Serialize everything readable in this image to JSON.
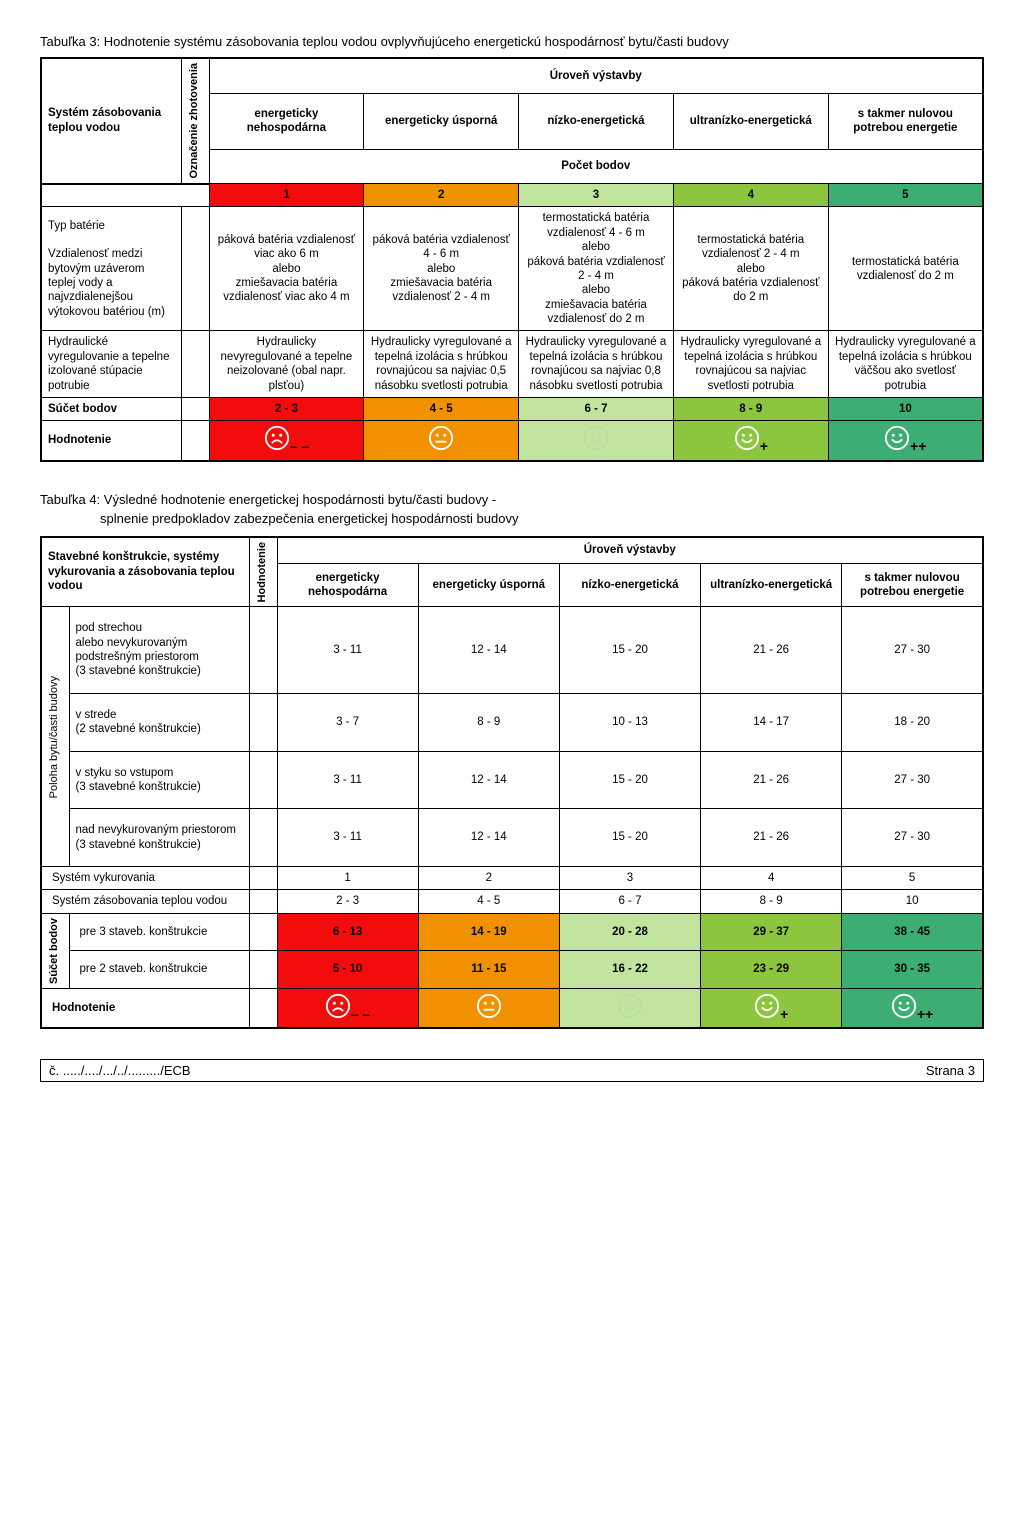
{
  "table3": {
    "caption": "Tabuľka 3: Hodnotenie systému zásobovania teplou vodou ovplyvňujúceho energetickú hospodárnosť bytu/časti budovy",
    "rowhead_main": "Systém zásobovania teplou vodou",
    "rowhead_vert": "Označenie zhotovenia",
    "group_header": "Úroveň výstavby",
    "cols": [
      "energeticky nehospodárna",
      "energeticky úsporná",
      "nízko-energetická",
      "ultranízko-energetická",
      "s takmer nulovou potrebou energetie"
    ],
    "points_label": "Počet bodov",
    "points": [
      "1",
      "2",
      "3",
      "4",
      "5"
    ],
    "point_colors": [
      "#f20c0c",
      "#f29100",
      "#c1e59f",
      "#8cc63f",
      "#3cae74"
    ],
    "r1_label": "Typ batérie\n\nVzdialenosť medzi bytovým uzáverom teplej vody a najvzdialenejšou výtokovou batériou (m)",
    "r1_cells": [
      "páková batéria vzdialenosť viac ako 6 m\nalebo\nzmiešavacia batéria vzdialenosť viac ako 4 m",
      "páková batéria vzdialenosť 4 - 6 m\nalebo\nzmiešavacia batéria vzdialenosť 2 - 4 m",
      "termostatická batéria vzdialenosť 4 - 6 m\nalebo\npáková batéria vzdialenosť 2 - 4 m\nalebo\nzmiešavacia batéria vzdialenosť do 2 m",
      "termostatická batéria vzdialenosť 2 - 4 m\nalebo\npáková batéria vzdialenosť do 2 m",
      "termostatická batéria vzdialenosť do 2 m"
    ],
    "r2_label": "Hydraulické vyregulovanie a tepelne izolované stúpacie potrubie",
    "r2_cells": [
      "Hydraulicky nevyregulované a tepelne neizolované (obal napr. plsťou)",
      "Hydraulicky vyregulované a tepelná izolácia s hrúbkou rovnajúcou sa najviac 0,5 násobku svetlosti potrubia",
      "Hydraulicky vyregulované a tepelná izolácia s hrúbkou rovnajúcou sa najviac 0,8 násobku svetlosti potrubia",
      "Hydraulicky vyregulované a tepelná izolácia s hrúbkou rovnajúcou sa najviac svetlosti potrubia",
      "Hydraulicky vyregulované a tepelná izolácia s hrúbkou väčšou ako svetlosť potrubia"
    ],
    "sum_label": "Súčet bodov",
    "sum_cells": [
      "2 - 3",
      "4 - 5",
      "6 - 7",
      "8 - 9",
      "10"
    ],
    "rating_label": "Hodnotenie",
    "rating_subs": [
      "– –",
      "",
      "",
      "+",
      "++"
    ],
    "rating_face": [
      "sad",
      "neutral",
      "happy",
      "happy",
      "happy"
    ],
    "rating_bg": [
      "#f20c0c",
      "#f29100",
      "#c1e59f",
      "#8cc63f",
      "#3cae74"
    ],
    "rating_circle": [
      "#ffffff",
      "#ffffff",
      "#b9e0a0",
      "#ffffff",
      "#ffffff"
    ]
  },
  "table4": {
    "caption": "Tabuľka 4: Výsledné hodnotenie energetickej hospodárnosti bytu/časti budovy -",
    "subcaption": "splnenie predpokladov zabezpečenia energetickej hospodárnosti budovy",
    "rowhead_main": "Stavebné konštrukcie, systémy vykurovania a zásobovania teplou vodou",
    "rowhead_vert": "Hodnotenie",
    "group_header": "Úroveň výstavby",
    "cols": [
      "energeticky nehospodárna",
      "energeticky úsporná",
      "nízko-energetická",
      "ultranízko-energetická",
      "s takmer nulovou potrebou energetie"
    ],
    "side_label": "Poloha bytu/časti budovy",
    "pos_rows": [
      {
        "label": "pod strechou\nalebo nevykurovaným podstrešným priestorom\n(3 stavebné konštrukcie)",
        "cells": [
          "3 - 11",
          "12 - 14",
          "15 - 20",
          "21 - 26",
          "27 - 30"
        ]
      },
      {
        "label": "v strede\n(2 stavebné konštrukcie)",
        "cells": [
          "3 -  7",
          "8 -  9",
          "10 - 13",
          "14 - 17",
          "18 - 20"
        ]
      },
      {
        "label": "v styku so vstupom\n(3 stavebné konštrukcie)",
        "cells": [
          "3 - 11",
          "12 - 14",
          "15 - 20",
          "21 - 26",
          "27 - 30"
        ]
      },
      {
        "label": "nad nevykurovaným priestorom\n(3 stavebné konštrukcie)",
        "cells": [
          "3 - 11",
          "12 - 14",
          "15 - 20",
          "21 - 26",
          "27 - 30"
        ]
      }
    ],
    "heat_label": "Systém vykurovania",
    "heat_cells": [
      "1",
      "2",
      "3",
      "4",
      "5"
    ],
    "water_label": "Systém zásobovania teplou vodou",
    "water_cells": [
      "2 -  3",
      "4 -  5",
      "6 -  7",
      "8 -  9",
      "10"
    ],
    "sum_side": "Súčet bodov",
    "sum_rows": [
      {
        "label": "pre 3 staveb. konštrukcie",
        "cells": [
          "6 - 13",
          "14 - 19",
          "20 - 28",
          "29 - 37",
          "38 - 45"
        ]
      },
      {
        "label": "pre 2 staveb. konštrukcie",
        "cells": [
          "5 - 10",
          "11 - 15",
          "16 - 22",
          "23 - 29",
          "30 - 35"
        ]
      }
    ],
    "sum_bg": [
      "#f20c0c",
      "#f29100",
      "#c1e59f",
      "#8cc63f",
      "#3cae74"
    ],
    "rating_label": "Hodnotenie",
    "rating_subs": [
      "– –",
      "",
      "",
      "+",
      "++"
    ],
    "rating_face": [
      "sad",
      "neutral",
      "happy",
      "happy",
      "happy"
    ],
    "rating_bg": [
      "#f20c0c",
      "#f29100",
      "#c1e59f",
      "#8cc63f",
      "#3cae74"
    ],
    "rating_circle": [
      "#ffffff",
      "#ffffff",
      "#b9e0a0",
      "#ffffff",
      "#ffffff"
    ]
  },
  "footer_left": "č. ...../..../.../../........./ECB",
  "footer_right": "Strana 3"
}
